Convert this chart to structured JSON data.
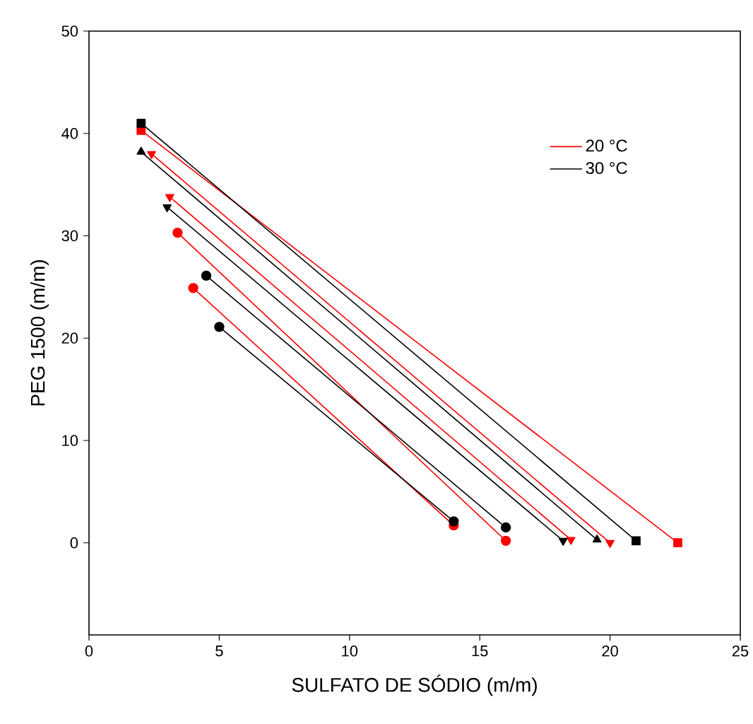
{
  "chart_data": {
    "type": "line",
    "xlabel": "SULFATO DE SÓDIO (m/m)",
    "ylabel": "PEG 1500 (m/m)",
    "xlim": [
      0,
      25
    ],
    "ylim": [
      -9,
      50
    ],
    "xticks": [
      0,
      5,
      10,
      15,
      20,
      25
    ],
    "yticks": [
      0,
      10,
      20,
      30,
      40,
      50
    ],
    "grid": false,
    "legend": "top right",
    "line_style": "solid",
    "series": [
      {
        "name": "20 °C",
        "color": "#ff0000",
        "marker": "square",
        "x": [
          2,
          22.6
        ],
        "values": [
          40.3,
          0
        ]
      },
      {
        "color": "#ff0000",
        "marker": "triangle_down",
        "x": [
          2.4,
          20
        ],
        "values": [
          38,
          0
        ]
      },
      {
        "color": "#ff0000",
        "marker": "triangle_down",
        "x": [
          3.1,
          18.5
        ],
        "values": [
          33.8,
          0.3
        ]
      },
      {
        "color": "#ff0000",
        "marker": "circle",
        "x": [
          3.4,
          16
        ],
        "values": [
          30.3,
          0.2
        ]
      },
      {
        "color": "#ff0000",
        "marker": "circle",
        "x": [
          4,
          14
        ],
        "values": [
          24.9,
          1.7
        ]
      },
      {
        "name": "30 °C",
        "color": "#000000",
        "marker": "square",
        "x": [
          2,
          21
        ],
        "values": [
          41,
          0.2
        ]
      },
      {
        "color": "#000000",
        "marker": "triangle",
        "x": [
          2,
          19.5
        ],
        "values": [
          38.2,
          0.3
        ]
      },
      {
        "color": "#000000",
        "marker": "triangle_down",
        "x": [
          3,
          18.2
        ],
        "values": [
          32.8,
          0.2
        ]
      },
      {
        "color": "#000000",
        "marker": "circle",
        "x": [
          4.5,
          16
        ],
        "values": [
          26.1,
          1.5
        ]
      },
      {
        "color": "#000000",
        "marker": "circle",
        "x": [
          5,
          14
        ],
        "values": [
          21.1,
          2.1
        ]
      }
    ]
  }
}
